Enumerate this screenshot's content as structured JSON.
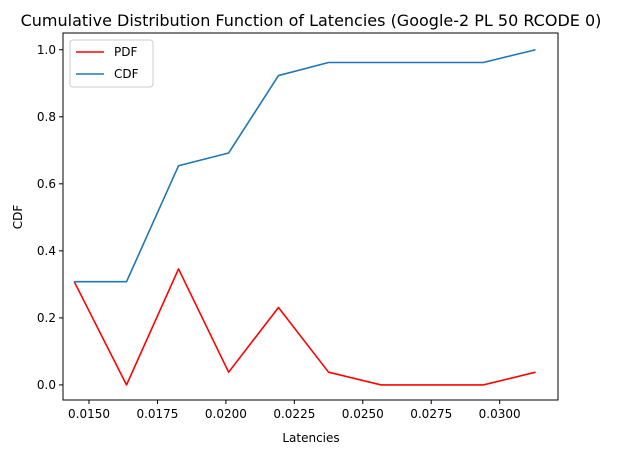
{
  "chart_data": {
    "type": "line",
    "title": "Cumulative Distribution Function of Latencies (Google-2 PL 50 RCODE 0)",
    "xlabel": "Latencies",
    "ylabel": "CDF",
    "xlim": [
      0.01405,
      0.03213
    ],
    "ylim": [
      -0.045,
      1.05
    ],
    "xticks": [
      0.015,
      0.0175,
      0.02,
      0.0225,
      0.025,
      0.0275,
      0.03
    ],
    "xtick_labels": [
      "0.0150",
      "0.0175",
      "0.0200",
      "0.0225",
      "0.0250",
      "0.0275",
      "0.0300"
    ],
    "yticks": [
      0.0,
      0.2,
      0.4,
      0.6,
      0.8,
      1.0
    ],
    "ytick_labels": [
      "0.0",
      "0.2",
      "0.4",
      "0.6",
      "0.8",
      "1.0"
    ],
    "grid": false,
    "legend_position": "top-left",
    "x": [
      0.01446,
      0.01637,
      0.01827,
      0.0201,
      0.02192,
      0.02375,
      0.02567,
      0.02758,
      0.0294,
      0.03131
    ],
    "series": [
      {
        "name": "PDF",
        "color": "#ff0000",
        "values": [
          0.308,
          0.0,
          0.346,
          0.038,
          0.231,
          0.038,
          0.0,
          0.0,
          0.0,
          0.038
        ]
      },
      {
        "name": "CDF",
        "color": "#1f77b4",
        "values": [
          0.308,
          0.308,
          0.654,
          0.692,
          0.923,
          0.962,
          0.962,
          0.962,
          0.962,
          1.0
        ]
      }
    ]
  }
}
